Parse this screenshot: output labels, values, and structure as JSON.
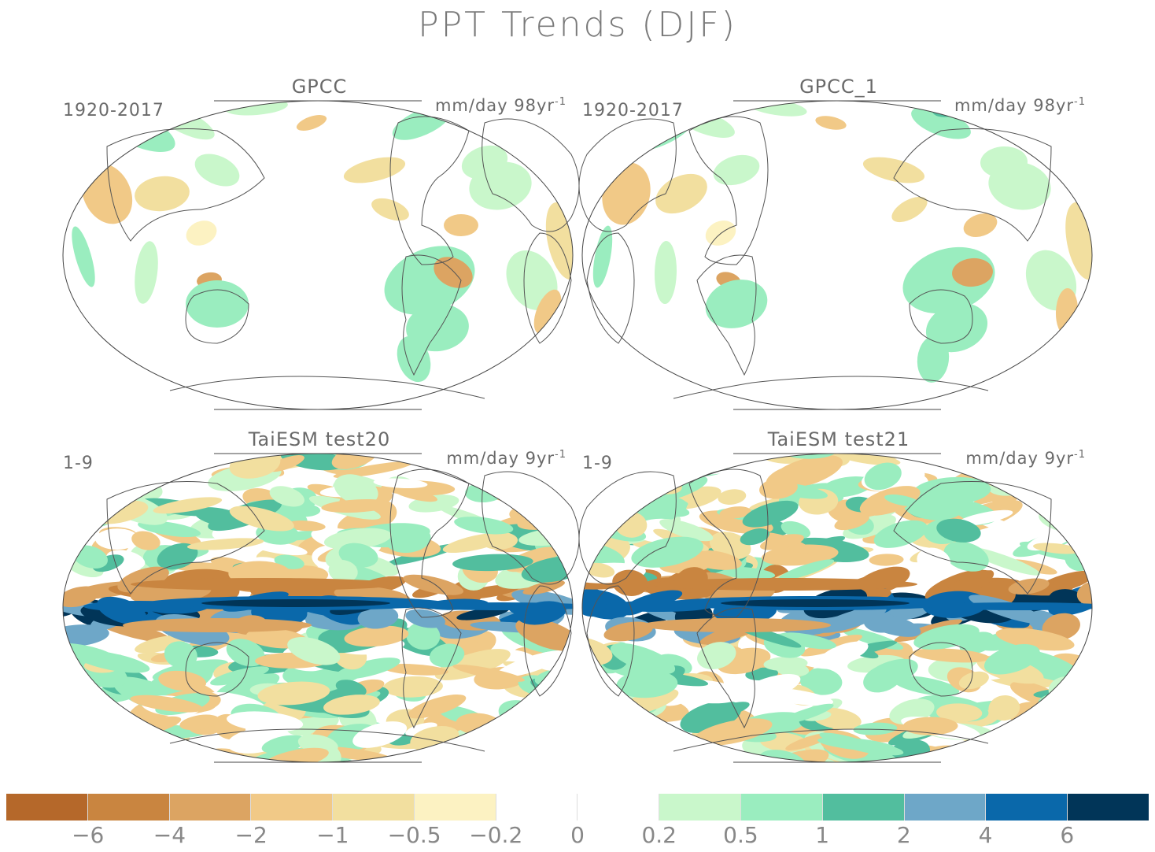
{
  "title": "PPT Trends (DJF)",
  "panels": [
    {
      "name": "GPCC",
      "period": "1920-2017",
      "units": "mm/day 98yr",
      "units_exp": "-1",
      "kind": "obs",
      "mirror": false
    },
    {
      "name": "GPCC_1",
      "period": "1920-2017",
      "units": "mm/day 98yr",
      "units_exp": "-1",
      "kind": "obs",
      "mirror": true
    },
    {
      "name": "TaiESM test20",
      "period": "1-9",
      "units": "mm/day 9yr",
      "units_exp": "-1",
      "kind": "model",
      "mirror": false
    },
    {
      "name": "TaiESM test21",
      "period": "1-9",
      "units": "mm/day 9yr",
      "units_exp": "-1",
      "kind": "model",
      "mirror": true
    }
  ],
  "colorbar": {
    "colors": [
      "#b5682a",
      "#c98540",
      "#dca462",
      "#f1c987",
      "#f2df9f",
      "#fcf2c2",
      "#ffffff",
      "#ffffff",
      "#c9f7cb",
      "#9aedbf",
      "#52be9e",
      "#6ea7c8",
      "#0a68aa",
      "#013558"
    ],
    "ticks": [
      "−6",
      "−4",
      "−2",
      "−1",
      "−0.5",
      "−0.2",
      "0",
      "0.2",
      "0.5",
      "1",
      "2",
      "4",
      "6"
    ]
  }
}
